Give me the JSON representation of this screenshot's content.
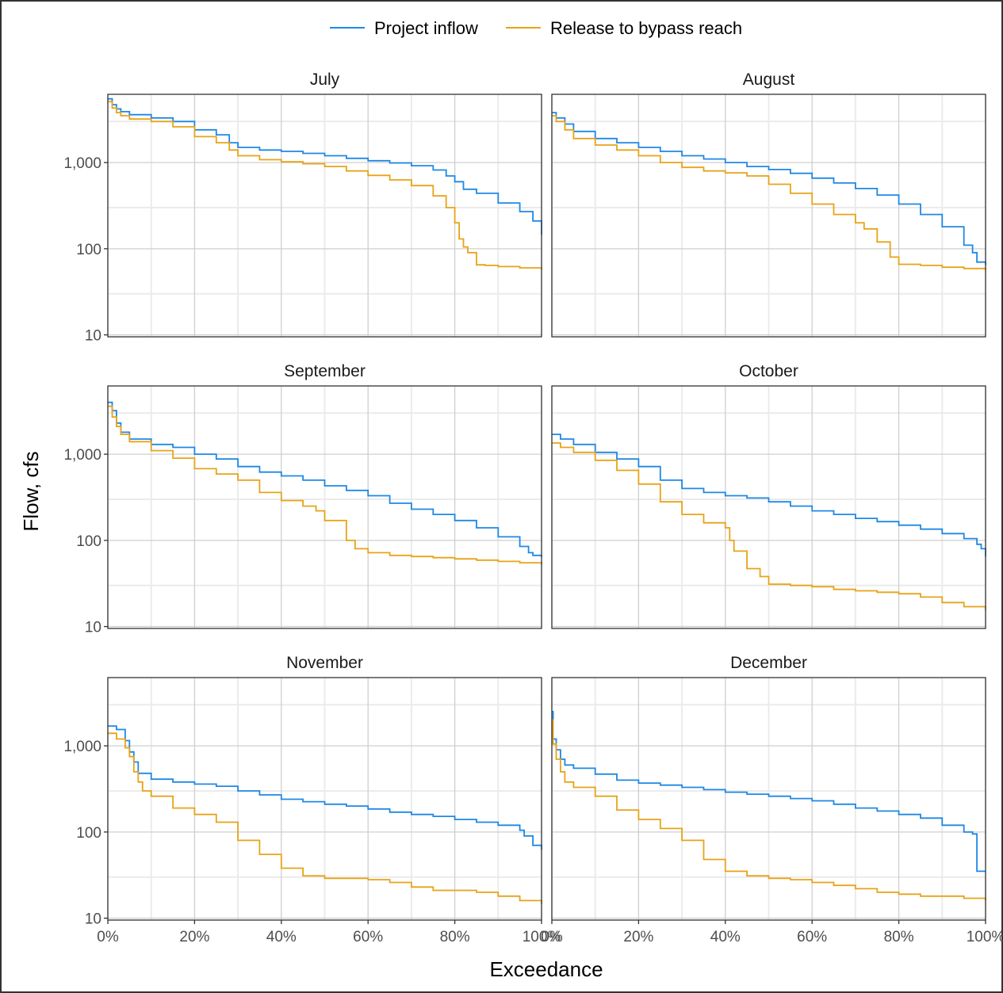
{
  "chart_data": {
    "type": "line",
    "step": true,
    "xlabel": "Exceedance",
    "ylabel": "Flow, cfs",
    "x_ticks": [
      "0%",
      "20%",
      "40%",
      "60%",
      "80%",
      "100%"
    ],
    "y_ticks": [
      "10",
      "100",
      "1,000"
    ],
    "y_scale": "log",
    "ylim": [
      9.5,
      6200
    ],
    "xlim": [
      0,
      100
    ],
    "grid": true,
    "legend_position": "top",
    "series_styles": [
      {
        "name": "Project inflow",
        "color": "#1e88e5"
      },
      {
        "name": "Release to bypass reach",
        "color": "#e8a317"
      }
    ],
    "panels": [
      {
        "title": "July",
        "series": [
          {
            "name": "Project inflow",
            "x": [
              0,
              1,
              2,
              3,
              5,
              10,
              15,
              20,
              25,
              28,
              30,
              35,
              40,
              45,
              50,
              55,
              60,
              65,
              70,
              75,
              78,
              80,
              82,
              85,
              90,
              95,
              98,
              100
            ],
            "y": [
              5500,
              4700,
              4200,
              3900,
              3600,
              3300,
              3000,
              2400,
              2100,
              1700,
              1500,
              1400,
              1350,
              1280,
              1200,
              1120,
              1050,
              990,
              920,
              820,
              700,
              600,
              490,
              440,
              340,
              270,
              210,
              145
            ]
          },
          {
            "name": "Release to bypass reach",
            "x": [
              0,
              1,
              2,
              3,
              5,
              10,
              15,
              20,
              25,
              28,
              30,
              35,
              40,
              45,
              50,
              55,
              60,
              65,
              70,
              75,
              78,
              80,
              81,
              82,
              83,
              85,
              87,
              90,
              95,
              100
            ],
            "y": [
              5100,
              4300,
              3800,
              3500,
              3200,
              3000,
              2600,
              2000,
              1700,
              1400,
              1200,
              1080,
              1020,
              970,
              900,
              800,
              710,
              630,
              540,
              410,
              300,
              200,
              130,
              105,
              90,
              65,
              64,
              62,
              60,
              57
            ]
          }
        ]
      },
      {
        "title": "August",
        "series": [
          {
            "name": "Project inflow",
            "x": [
              0,
              1,
              3,
              5,
              10,
              15,
              20,
              25,
              30,
              35,
              40,
              45,
              50,
              55,
              60,
              65,
              70,
              75,
              80,
              85,
              90,
              95,
              97,
              98,
              100
            ],
            "y": [
              3800,
              3300,
              2800,
              2300,
              1900,
              1700,
              1500,
              1350,
              1200,
              1100,
              1000,
              900,
              830,
              750,
              660,
              580,
              500,
              420,
              330,
              250,
              180,
              110,
              90,
              70,
              65
            ]
          },
          {
            "name": "Release to bypass reach",
            "x": [
              0,
              1,
              3,
              5,
              10,
              15,
              20,
              25,
              30,
              35,
              40,
              45,
              50,
              55,
              60,
              65,
              70,
              72,
              75,
              78,
              80,
              85,
              90,
              95,
              100
            ],
            "y": [
              3500,
              3000,
              2400,
              1900,
              1600,
              1400,
              1200,
              1000,
              880,
              800,
              760,
              700,
              560,
              440,
              330,
              250,
              200,
              170,
              120,
              80,
              66,
              64,
              61,
              59,
              56
            ]
          }
        ]
      },
      {
        "title": "September",
        "series": [
          {
            "name": "Project inflow",
            "x": [
              0,
              1,
              2,
              3,
              5,
              10,
              15,
              20,
              25,
              30,
              35,
              40,
              45,
              50,
              55,
              60,
              65,
              70,
              75,
              80,
              85,
              90,
              95,
              97,
              98,
              100
            ],
            "y": [
              4000,
              3200,
              2300,
              1800,
              1500,
              1300,
              1200,
              1000,
              880,
              720,
              620,
              560,
              500,
              430,
              380,
              330,
              270,
              230,
              200,
              170,
              140,
              110,
              85,
              72,
              67,
              64
            ]
          },
          {
            "name": "Release to bypass reach",
            "x": [
              0,
              1,
              2,
              3,
              5,
              10,
              15,
              20,
              25,
              30,
              35,
              40,
              45,
              48,
              50,
              55,
              57,
              60,
              65,
              70,
              75,
              80,
              85,
              90,
              95,
              100
            ],
            "y": [
              3600,
              2700,
              2100,
              1700,
              1400,
              1100,
              900,
              680,
              590,
              500,
              360,
              290,
              250,
              220,
              170,
              100,
              80,
              72,
              67,
              65,
              63,
              61,
              59,
              57,
              55,
              52
            ]
          }
        ]
      },
      {
        "title": "October",
        "series": [
          {
            "name": "Project inflow",
            "x": [
              0,
              2,
              5,
              10,
              15,
              20,
              25,
              30,
              35,
              40,
              45,
              50,
              55,
              60,
              65,
              70,
              75,
              80,
              85,
              90,
              95,
              98,
              99,
              100
            ],
            "y": [
              1700,
              1500,
              1300,
              1050,
              880,
              720,
              500,
              400,
              360,
              330,
              310,
              280,
              250,
              220,
              200,
              180,
              165,
              150,
              135,
              120,
              105,
              90,
              80,
              65
            ]
          },
          {
            "name": "Release to bypass reach",
            "x": [
              0,
              2,
              5,
              10,
              15,
              20,
              25,
              30,
              35,
              40,
              41,
              42,
              45,
              48,
              50,
              55,
              60,
              65,
              70,
              75,
              80,
              85,
              90,
              95,
              100
            ],
            "y": [
              1350,
              1200,
              1050,
              850,
              650,
              450,
              280,
              200,
              160,
              140,
              100,
              75,
              47,
              38,
              31,
              30,
              29,
              27,
              26,
              25,
              24,
              22,
              19,
              17,
              15.5
            ]
          }
        ]
      },
      {
        "title": "November",
        "series": [
          {
            "name": "Project inflow",
            "x": [
              0,
              2,
              4,
              5,
              6,
              7,
              10,
              15,
              20,
              25,
              30,
              35,
              40,
              45,
              50,
              55,
              60,
              65,
              70,
              75,
              80,
              85,
              90,
              95,
              96,
              98,
              100
            ],
            "y": [
              1700,
              1550,
              1150,
              850,
              650,
              480,
              410,
              380,
              360,
              340,
              300,
              270,
              240,
              225,
              210,
              200,
              185,
              170,
              160,
              152,
              140,
              130,
              120,
              105,
              90,
              70,
              62
            ]
          },
          {
            "name": "Release to bypass reach",
            "x": [
              0,
              2,
              4,
              5,
              6,
              7,
              8,
              10,
              15,
              20,
              25,
              30,
              35,
              40,
              45,
              50,
              55,
              60,
              65,
              70,
              75,
              80,
              85,
              90,
              95,
              100
            ],
            "y": [
              1400,
              1200,
              950,
              750,
              500,
              380,
              300,
              260,
              190,
              160,
              130,
              80,
              55,
              38,
              31,
              29,
              29,
              28,
              26,
              23,
              21,
              21,
              20,
              18,
              16,
              14.5
            ]
          }
        ]
      },
      {
        "title": "December",
        "series": [
          {
            "name": "Project inflow",
            "x": [
              0,
              0.3,
              1,
              2,
              3,
              5,
              10,
              15,
              20,
              25,
              30,
              35,
              40,
              45,
              50,
              55,
              60,
              65,
              70,
              75,
              80,
              85,
              90,
              95,
              97,
              98,
              100
            ],
            "y": [
              2500,
              1200,
              900,
              700,
              600,
              550,
              470,
              400,
              370,
              350,
              330,
              310,
              290,
              275,
              260,
              245,
              230,
              210,
              190,
              175,
              160,
              145,
              120,
              100,
              95,
              35,
              35
            ]
          },
          {
            "name": "Release to bypass reach",
            "x": [
              0,
              0.3,
              1,
              2,
              3,
              5,
              10,
              15,
              20,
              25,
              30,
              35,
              40,
              45,
              50,
              55,
              60,
              65,
              70,
              75,
              80,
              85,
              90,
              95,
              100
            ],
            "y": [
              2000,
              1050,
              700,
              500,
              380,
              330,
              260,
              180,
              140,
              110,
              80,
              48,
              35,
              31,
              29,
              28,
              26,
              24,
              22,
              20,
              19,
              18,
              18,
              17,
              16
            ]
          }
        ]
      }
    ]
  }
}
